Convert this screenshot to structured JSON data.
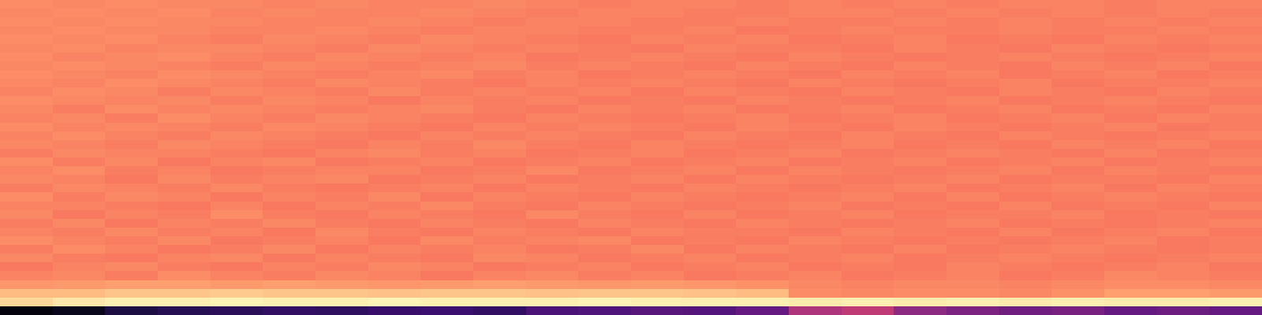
{
  "chart_data": {
    "type": "heatmap",
    "tick_labels": false,
    "zlim": [
      0,
      1
    ],
    "cells": [
      [
        0.02,
        0.05,
        0.12,
        0.15,
        0.16,
        0.18,
        0.17,
        0.19,
        0.2,
        0.18,
        0.24,
        0.25,
        0.27,
        0.26,
        0.3,
        0.48,
        0.52,
        0.4,
        0.36,
        0.33,
        0.35,
        0.3,
        0.32,
        0.3
      ],
      [
        0.92,
        0.95,
        0.97,
        0.97,
        0.98,
        0.97,
        0.97,
        0.98,
        0.97,
        0.97,
        0.97,
        0.98,
        0.97,
        0.97,
        0.97,
        0.96,
        0.97,
        0.96,
        0.97,
        0.96,
        0.97,
        0.96,
        0.96,
        0.97
      ],
      [
        0.86,
        0.86,
        0.88,
        0.88,
        0.89,
        0.88,
        0.88,
        0.87,
        0.88,
        0.88,
        0.87,
        0.88,
        0.88,
        0.87,
        0.86,
        0.76,
        0.75,
        0.76,
        0.76,
        0.75,
        0.77,
        0.8,
        0.8,
        0.79
      ],
      [
        0.78,
        0.79,
        0.8,
        0.8,
        0.79,
        0.8,
        0.79,
        0.78,
        0.79,
        0.8,
        0.79,
        0.78,
        0.79,
        0.78,
        0.77,
        0.75,
        0.74,
        0.75,
        0.75,
        0.74,
        0.75,
        0.76,
        0.76,
        0.75
      ],
      [
        0.74,
        0.75,
        0.73,
        0.76,
        0.74,
        0.73,
        0.75,
        0.74,
        0.72,
        0.74,
        0.75,
        0.73,
        0.74,
        0.72,
        0.73,
        0.74,
        0.72,
        0.73,
        0.74,
        0.72,
        0.73,
        0.75,
        0.74,
        0.73
      ],
      [
        0.72,
        0.74,
        0.75,
        0.73,
        0.72,
        0.74,
        0.73,
        0.75,
        0.74,
        0.72,
        0.73,
        0.74,
        0.72,
        0.73,
        0.74,
        0.72,
        0.73,
        0.72,
        0.74,
        0.73,
        0.72,
        0.73,
        0.74,
        0.72
      ],
      [
        0.75,
        0.73,
        0.72,
        0.74,
        0.75,
        0.72,
        0.74,
        0.73,
        0.72,
        0.75,
        0.74,
        0.72,
        0.73,
        0.74,
        0.72,
        0.73,
        0.74,
        0.72,
        0.73,
        0.74,
        0.73,
        0.72,
        0.73,
        0.74
      ],
      [
        0.73,
        0.76,
        0.74,
        0.72,
        0.73,
        0.75,
        0.72,
        0.74,
        0.73,
        0.74,
        0.72,
        0.73,
        0.75,
        0.72,
        0.74,
        0.73,
        0.72,
        0.74,
        0.72,
        0.73,
        0.74,
        0.73,
        0.72,
        0.73
      ],
      [
        0.76,
        0.74,
        0.73,
        0.75,
        0.72,
        0.73,
        0.74,
        0.72,
        0.75,
        0.73,
        0.74,
        0.75,
        0.72,
        0.73,
        0.72,
        0.74,
        0.73,
        0.72,
        0.73,
        0.72,
        0.73,
        0.74,
        0.72,
        0.73
      ],
      [
        0.74,
        0.73,
        0.75,
        0.73,
        0.74,
        0.72,
        0.75,
        0.73,
        0.72,
        0.74,
        0.73,
        0.72,
        0.74,
        0.73,
        0.73,
        0.72,
        0.74,
        0.73,
        0.72,
        0.74,
        0.72,
        0.73,
        0.74,
        0.72
      ],
      [
        0.73,
        0.75,
        0.72,
        0.74,
        0.73,
        0.75,
        0.73,
        0.72,
        0.74,
        0.73,
        0.72,
        0.74,
        0.73,
        0.72,
        0.74,
        0.73,
        0.72,
        0.73,
        0.74,
        0.72,
        0.73,
        0.72,
        0.73,
        0.74
      ],
      [
        0.75,
        0.72,
        0.74,
        0.73,
        0.76,
        0.73,
        0.72,
        0.74,
        0.73,
        0.72,
        0.75,
        0.73,
        0.72,
        0.74,
        0.72,
        0.73,
        0.74,
        0.72,
        0.73,
        0.73,
        0.74,
        0.72,
        0.73,
        0.72
      ],
      [
        0.74,
        0.74,
        0.73,
        0.72,
        0.74,
        0.72,
        0.74,
        0.73,
        0.75,
        0.73,
        0.72,
        0.74,
        0.73,
        0.72,
        0.73,
        0.74,
        0.72,
        0.73,
        0.72,
        0.74,
        0.72,
        0.73,
        0.72,
        0.74
      ],
      [
        0.76,
        0.73,
        0.75,
        0.74,
        0.72,
        0.74,
        0.73,
        0.75,
        0.72,
        0.74,
        0.73,
        0.72,
        0.74,
        0.73,
        0.72,
        0.73,
        0.74,
        0.72,
        0.74,
        0.72,
        0.73,
        0.74,
        0.73,
        0.72
      ],
      [
        0.73,
        0.75,
        0.74,
        0.73,
        0.75,
        0.73,
        0.72,
        0.73,
        0.74,
        0.72,
        0.74,
        0.73,
        0.72,
        0.74,
        0.73,
        0.72,
        0.73,
        0.74,
        0.72,
        0.73,
        0.74,
        0.72,
        0.74,
        0.73
      ],
      [
        0.75,
        0.74,
        0.72,
        0.75,
        0.73,
        0.74,
        0.75,
        0.72,
        0.73,
        0.74,
        0.72,
        0.73,
        0.74,
        0.72,
        0.74,
        0.73,
        0.72,
        0.73,
        0.74,
        0.72,
        0.73,
        0.73,
        0.72,
        0.74
      ],
      [
        0.74,
        0.76,
        0.73,
        0.74,
        0.72,
        0.73,
        0.74,
        0.74,
        0.72,
        0.73,
        0.75,
        0.72,
        0.73,
        0.74,
        0.72,
        0.74,
        0.73,
        0.72,
        0.73,
        0.74,
        0.72,
        0.74,
        0.73,
        0.72
      ],
      [
        0.76,
        0.73,
        0.75,
        0.72,
        0.74,
        0.75,
        0.72,
        0.73,
        0.74,
        0.72,
        0.73,
        0.74,
        0.72,
        0.73,
        0.74,
        0.72,
        0.73,
        0.74,
        0.72,
        0.73,
        0.74,
        0.72,
        0.73,
        0.74
      ],
      [
        0.73,
        0.75,
        0.74,
        0.74,
        0.73,
        0.72,
        0.74,
        0.75,
        0.73,
        0.74,
        0.72,
        0.73,
        0.74,
        0.72,
        0.73,
        0.74,
        0.72,
        0.73,
        0.74,
        0.73,
        0.72,
        0.74,
        0.72,
        0.73
      ],
      [
        0.75,
        0.74,
        0.73,
        0.75,
        0.74,
        0.73,
        0.72,
        0.74,
        0.73,
        0.75,
        0.73,
        0.72,
        0.74,
        0.73,
        0.72,
        0.73,
        0.74,
        0.72,
        0.73,
        0.72,
        0.74,
        0.73,
        0.74,
        0.72
      ],
      [
        0.74,
        0.76,
        0.74,
        0.73,
        0.75,
        0.74,
        0.73,
        0.72,
        0.74,
        0.73,
        0.74,
        0.73,
        0.72,
        0.74,
        0.73,
        0.72,
        0.74,
        0.73,
        0.72,
        0.74,
        0.73,
        0.72,
        0.73,
        0.74
      ],
      [
        0.76,
        0.74,
        0.75,
        0.74,
        0.73,
        0.75,
        0.74,
        0.73,
        0.72,
        0.74,
        0.73,
        0.74,
        0.73,
        0.72,
        0.74,
        0.73,
        0.72,
        0.74,
        0.73,
        0.72,
        0.73,
        0.74,
        0.72,
        0.73
      ],
      [
        0.74,
        0.75,
        0.73,
        0.76,
        0.74,
        0.73,
        0.75,
        0.74,
        0.73,
        0.72,
        0.74,
        0.73,
        0.72,
        0.73,
        0.74,
        0.72,
        0.73,
        0.74,
        0.72,
        0.73,
        0.74,
        0.72,
        0.74,
        0.73
      ],
      [
        0.75,
        0.73,
        0.76,
        0.74,
        0.75,
        0.74,
        0.73,
        0.74,
        0.75,
        0.73,
        0.72,
        0.74,
        0.73,
        0.74,
        0.72,
        0.73,
        0.74,
        0.72,
        0.73,
        0.74,
        0.72,
        0.73,
        0.72,
        0.74
      ],
      [
        0.76,
        0.75,
        0.74,
        0.75,
        0.73,
        0.75,
        0.74,
        0.72,
        0.74,
        0.73,
        0.74,
        0.72,
        0.73,
        0.72,
        0.74,
        0.73,
        0.72,
        0.73,
        0.74,
        0.72,
        0.73,
        0.74,
        0.73,
        0.72
      ],
      [
        0.74,
        0.76,
        0.75,
        0.73,
        0.75,
        0.74,
        0.73,
        0.75,
        0.73,
        0.74,
        0.73,
        0.74,
        0.72,
        0.74,
        0.73,
        0.72,
        0.74,
        0.73,
        0.72,
        0.74,
        0.73,
        0.72,
        0.74,
        0.73
      ],
      [
        0.75,
        0.74,
        0.76,
        0.75,
        0.74,
        0.73,
        0.75,
        0.74,
        0.73,
        0.72,
        0.74,
        0.73,
        0.74,
        0.73,
        0.72,
        0.74,
        0.73,
        0.72,
        0.73,
        0.74,
        0.72,
        0.73,
        0.73,
        0.74
      ],
      [
        0.76,
        0.75,
        0.74,
        0.76,
        0.75,
        0.74,
        0.73,
        0.74,
        0.75,
        0.73,
        0.74,
        0.72,
        0.73,
        0.74,
        0.73,
        0.72,
        0.74,
        0.73,
        0.74,
        0.72,
        0.73,
        0.74,
        0.72,
        0.73
      ],
      [
        0.75,
        0.76,
        0.75,
        0.74,
        0.73,
        0.75,
        0.74,
        0.73,
        0.74,
        0.75,
        0.73,
        0.74,
        0.73,
        0.72,
        0.74,
        0.73,
        0.72,
        0.74,
        0.73,
        0.72,
        0.74,
        0.73,
        0.74,
        0.72
      ],
      [
        0.76,
        0.74,
        0.75,
        0.76,
        0.74,
        0.73,
        0.75,
        0.74,
        0.73,
        0.74,
        0.72,
        0.73,
        0.74,
        0.73,
        0.72,
        0.74,
        0.73,
        0.72,
        0.73,
        0.74,
        0.73,
        0.72,
        0.73,
        0.74
      ],
      [
        0.75,
        0.76,
        0.74,
        0.75,
        0.75,
        0.74,
        0.73,
        0.75,
        0.74,
        0.73,
        0.74,
        0.73,
        0.72,
        0.74,
        0.73,
        0.73,
        0.72,
        0.74,
        0.73,
        0.72,
        0.74,
        0.73,
        0.72,
        0.73
      ],
      [
        0.76,
        0.75,
        0.76,
        0.74,
        0.73,
        0.75,
        0.74,
        0.73,
        0.75,
        0.74,
        0.73,
        0.72,
        0.74,
        0.73,
        0.74,
        0.72,
        0.73,
        0.74,
        0.72,
        0.73,
        0.72,
        0.74,
        0.73,
        0.74
      ],
      [
        0.75,
        0.76,
        0.75,
        0.75,
        0.74,
        0.74,
        0.75,
        0.74,
        0.73,
        0.74,
        0.74,
        0.73,
        0.73,
        0.74,
        0.72,
        0.73,
        0.74,
        0.73,
        0.73,
        0.74,
        0.73,
        0.73,
        0.74,
        0.73
      ],
      [
        0.76,
        0.75,
        0.76,
        0.75,
        0.75,
        0.74,
        0.74,
        0.75,
        0.74,
        0.73,
        0.74,
        0.74,
        0.73,
        0.73,
        0.74,
        0.73,
        0.73,
        0.74,
        0.73,
        0.74,
        0.73,
        0.74,
        0.73,
        0.74
      ],
      [
        0.75,
        0.76,
        0.75,
        0.76,
        0.74,
        0.75,
        0.74,
        0.74,
        0.75,
        0.74,
        0.73,
        0.74,
        0.74,
        0.73,
        0.73,
        0.74,
        0.74,
        0.73,
        0.74,
        0.73,
        0.74,
        0.73,
        0.74,
        0.73
      ],
      [
        0.76,
        0.75,
        0.76,
        0.75,
        0.75,
        0.74,
        0.75,
        0.74,
        0.74,
        0.75,
        0.74,
        0.73,
        0.74,
        0.74,
        0.73,
        0.74,
        0.73,
        0.74,
        0.73,
        0.74,
        0.74,
        0.73,
        0.74,
        0.74
      ]
    ]
  }
}
